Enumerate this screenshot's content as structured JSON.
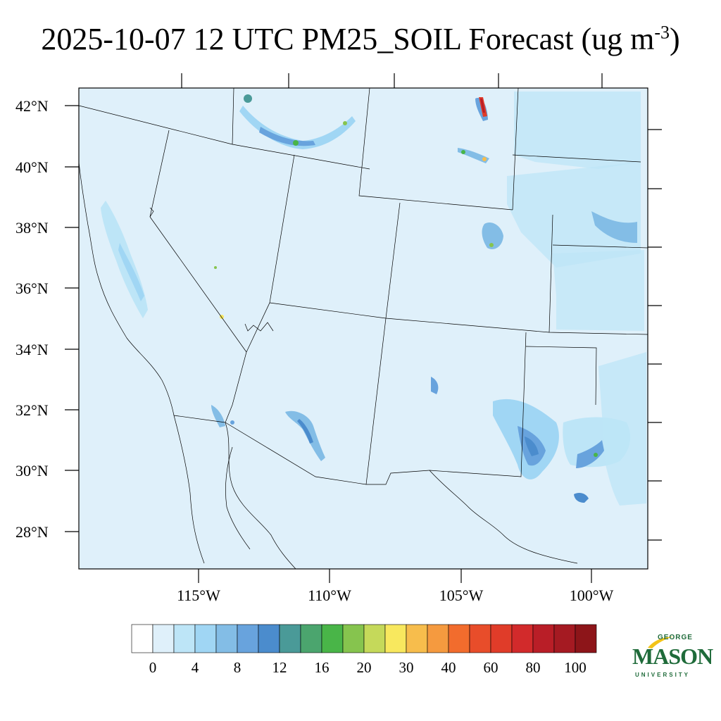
{
  "title": {
    "main": "2025-10-07 12 UTC PM25_SOIL Forecast (ug m",
    "superscript": "-3",
    "suffix": ")"
  },
  "map": {
    "lat_labels": [
      "42°N",
      "40°N",
      "38°N",
      "36°N",
      "34°N",
      "32°N",
      "30°N",
      "28°N"
    ],
    "lon_labels": [
      "115°W",
      "110°W",
      "105°W",
      "100°W"
    ],
    "background_color": "#dff0fa",
    "border_color": "#000000"
  },
  "colorbar": {
    "tick_labels": [
      "0",
      "4",
      "8",
      "12",
      "16",
      "20",
      "30",
      "40",
      "60",
      "80",
      "100"
    ],
    "colors": [
      "#ffffff",
      "#dff0fa",
      "#bde5f7",
      "#a0d6f4",
      "#83bde6",
      "#68a3dd",
      "#4b8ccd",
      "#4a9a98",
      "#4ba56e",
      "#49b548",
      "#86c44e",
      "#c5d95a",
      "#f8e85e",
      "#f7bd4c",
      "#f59a3f",
      "#f26c2d",
      "#e84d2a",
      "#e03c29",
      "#d22a2b",
      "#b91e27",
      "#a51a22",
      "#8d1519"
    ]
  },
  "logo": {
    "line1": "GEORGE",
    "line2": "MASON",
    "line3": "UNIVERSITY",
    "color": "#1f6b3a",
    "accent_color": "#f2c318"
  }
}
